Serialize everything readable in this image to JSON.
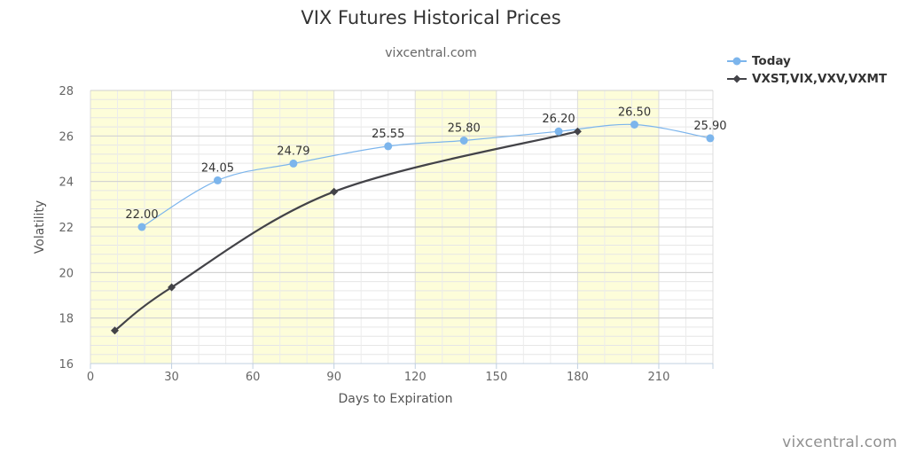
{
  "chart_data": {
    "type": "line",
    "title": "VIX Futures Historical Prices",
    "subtitle": "vixcentral.com",
    "xlabel": "Days to Expiration",
    "ylabel": "Volatility",
    "xlim": [
      0,
      230
    ],
    "ylim": [
      16,
      28
    ],
    "x_ticks": [
      0,
      30,
      60,
      90,
      120,
      150,
      180,
      210
    ],
    "y_ticks": [
      16,
      18,
      20,
      22,
      24,
      26,
      28
    ],
    "bands": [
      [
        0,
        30
      ],
      [
        60,
        90
      ],
      [
        120,
        150
      ],
      [
        180,
        210
      ]
    ],
    "band_color": "#fdfdd9",
    "grid": true,
    "legend_position": "top-right",
    "series": [
      {
        "name": "Today",
        "color": "#7cb5ec",
        "marker": "circle",
        "show_labels": true,
        "points": [
          {
            "x": 19,
            "y": 22.0,
            "label": "22.00"
          },
          {
            "x": 47,
            "y": 24.05,
            "label": "24.05"
          },
          {
            "x": 75,
            "y": 24.79,
            "label": "24.79"
          },
          {
            "x": 110,
            "y": 25.55,
            "label": "25.55"
          },
          {
            "x": 138,
            "y": 25.8,
            "label": "25.80"
          },
          {
            "x": 173,
            "y": 26.2,
            "label": "26.20"
          },
          {
            "x": 201,
            "y": 26.5,
            "label": "26.50"
          },
          {
            "x": 229,
            "y": 25.9,
            "label": "25.90"
          }
        ]
      },
      {
        "name": "VXST,VIX,VXV,VXMT",
        "color": "#434348",
        "marker": "diamond",
        "show_labels": false,
        "points": [
          {
            "x": 9,
            "y": 17.45
          },
          {
            "x": 30,
            "y": 19.35
          },
          {
            "x": 90,
            "y": 23.55
          },
          {
            "x": 180,
            "y": 26.2
          }
        ]
      }
    ]
  },
  "credit": "vixcentral.com"
}
